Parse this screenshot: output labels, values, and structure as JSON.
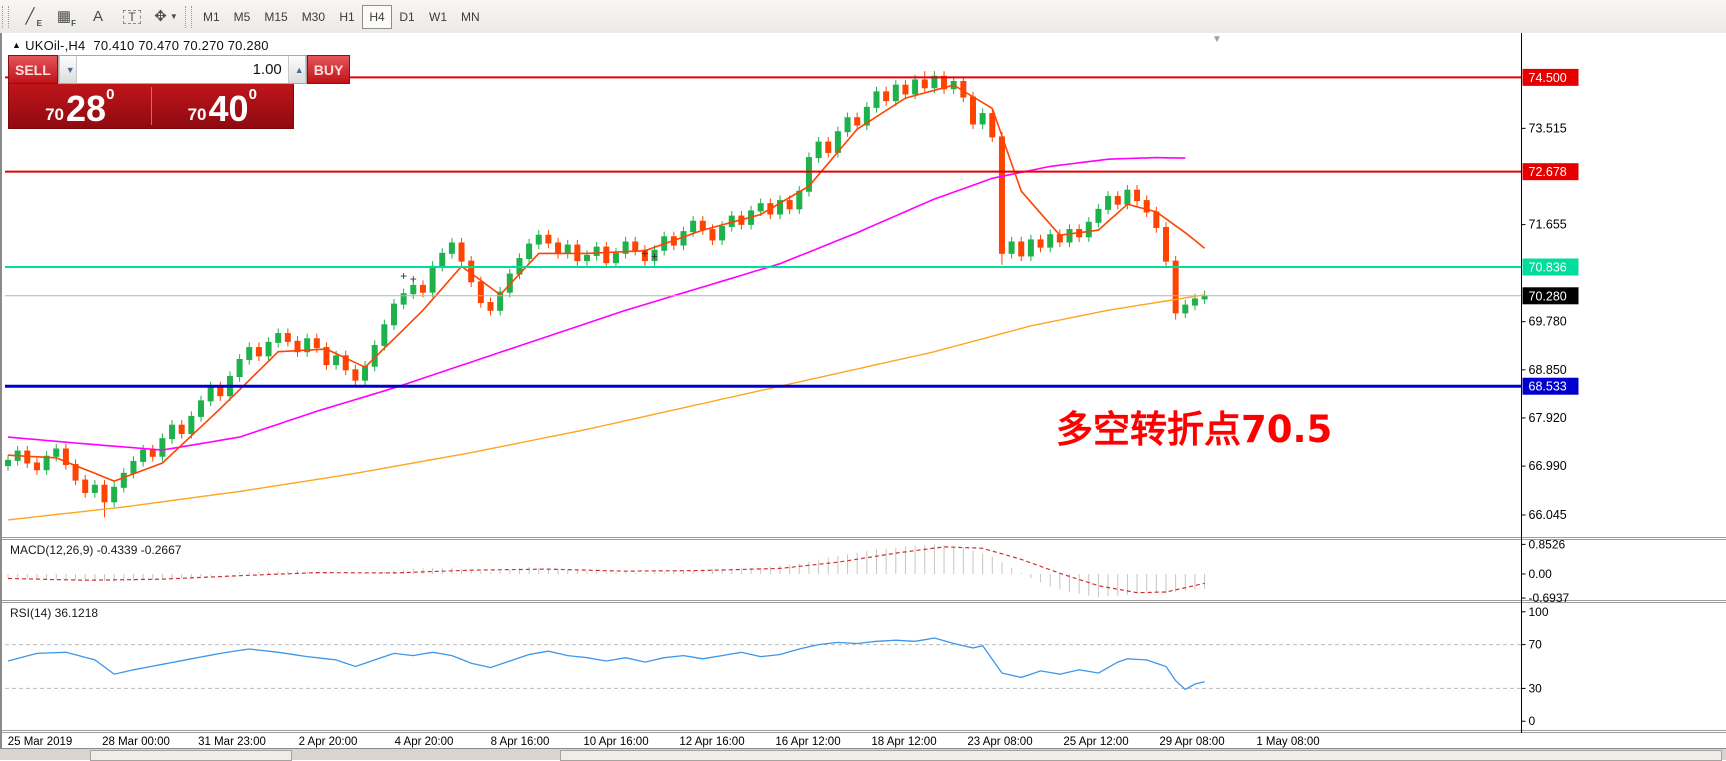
{
  "toolbar": {
    "tools": [
      {
        "id": "draw-lines-tool",
        "char": "╱",
        "sub": "E",
        "boxed": false,
        "dropdown": false
      },
      {
        "id": "grid-tool",
        "char": "▦",
        "sub": "F",
        "boxed": false,
        "dropdown": false
      },
      {
        "id": "text-tool",
        "char": "A",
        "sub": "",
        "boxed": false,
        "dropdown": false
      },
      {
        "id": "textbox-tool",
        "char": "T",
        "sub": "",
        "boxed": true,
        "dropdown": false
      },
      {
        "id": "objects-tool",
        "char": "✥",
        "sub": "",
        "boxed": false,
        "dropdown": true
      }
    ],
    "timeframes": [
      "M1",
      "M5",
      "M15",
      "M30",
      "H1",
      "H4",
      "D1",
      "W1",
      "MN"
    ],
    "active_timeframe": "H4"
  },
  "header": {
    "collapse_glyph": "▲",
    "symbol": "UKOil-,H4",
    "ohlc": "70.410 70.470 70.270 70.280"
  },
  "trade_panel": {
    "sell_label": "SELL",
    "buy_label": "BUY",
    "volume": "1.00",
    "down_glyph": "▼",
    "up_glyph": "▲",
    "sell_price_major": "70",
    "sell_price_pips": "28",
    "sell_price_frac": "0",
    "buy_price_major": "70",
    "buy_price_pips": "40",
    "buy_price_frac": "0"
  },
  "annotation": {
    "text": "多空转折点70.5",
    "color": "#FF0000"
  },
  "shift_marker_glyph": "▼",
  "macd_panel": {
    "label": "MACD(12,26,9) -0.4339 -0.2667",
    "ticks": [
      {
        "label": "0.8526",
        "value": 0.8526
      },
      {
        "label": "0.00",
        "value": 0
      },
      {
        "label": "-0.6937",
        "value": -0.6937
      }
    ]
  },
  "rsi_panel": {
    "label": "RSI(14) 36.1218",
    "ticks": [
      {
        "label": "100",
        "value": 100
      },
      {
        "label": "70",
        "value": 70
      },
      {
        "label": "30",
        "value": 30
      },
      {
        "label": "0",
        "value": 0
      }
    ],
    "dashed_levels": [
      70,
      30
    ]
  },
  "price_axis": {
    "ticks": [
      {
        "label": "73.515",
        "value": 73.515
      },
      {
        "label": "71.655",
        "value": 71.655
      },
      {
        "label": "69.780",
        "value": 69.78
      },
      {
        "label": "68.850",
        "value": 68.85
      },
      {
        "label": "67.920",
        "value": 67.92
      },
      {
        "label": "66.990",
        "value": 66.99
      },
      {
        "label": "66.045",
        "value": 66.045
      }
    ],
    "badges": [
      {
        "label": "74.500",
        "value": 74.5,
        "bg": "#E50000",
        "fg": "#ffffff"
      },
      {
        "label": "72.678",
        "value": 72.678,
        "bg": "#E50000",
        "fg": "#ffffff"
      },
      {
        "label": "70.836",
        "value": 70.836,
        "bg": "#00DD9C",
        "fg": "#ffffff"
      },
      {
        "label": "70.280",
        "value": 70.28,
        "bg": "#000000",
        "fg": "#ffffff"
      },
      {
        "label": "68.533",
        "value": 68.533,
        "bg": "#0000CC",
        "fg": "#ffffff"
      }
    ]
  },
  "x_axis": {
    "labels": [
      "25 Mar 2019",
      "28 Mar 00:00",
      "31 Mar 23:00",
      "2 Apr 20:00",
      "4 Apr 20:00",
      "8 Apr 16:00",
      "10 Apr 16:00",
      "12 Apr 16:00",
      "16 Apr 12:00",
      "18 Apr 12:00",
      "23 Apr 08:00",
      "25 Apr 12:00",
      "29 Apr 08:00",
      "1 May 08:00"
    ]
  },
  "chart_data": {
    "type": "candlestick",
    "symbol": "UKOil-",
    "timeframe": "H4",
    "title": "UKOil-,H4 70.410 70.470 70.270 70.280",
    "ylim": [
      65.62,
      75.28
    ],
    "closes": [
      67.1,
      67.28,
      67.05,
      66.92,
      67.18,
      67.32,
      67.02,
      66.72,
      66.48,
      66.62,
      66.3,
      66.58,
      66.85,
      67.08,
      67.3,
      67.18,
      67.52,
      67.78,
      67.62,
      67.95,
      68.25,
      68.52,
      68.35,
      68.72,
      69.05,
      69.28,
      69.12,
      69.38,
      69.55,
      69.4,
      69.2,
      69.45,
      69.28,
      68.95,
      69.12,
      68.85,
      68.65,
      68.92,
      69.32,
      69.72,
      70.12,
      70.32,
      70.48,
      70.35,
      70.85,
      71.1,
      71.3,
      70.95,
      70.55,
      70.15,
      70.0,
      70.35,
      70.7,
      71.0,
      71.28,
      71.45,
      71.3,
      71.1,
      71.26,
      70.96,
      71.06,
      71.22,
      70.92,
      71.1,
      71.32,
      71.16,
      70.96,
      71.16,
      71.42,
      71.26,
      71.52,
      71.72,
      71.56,
      71.36,
      71.62,
      71.82,
      71.66,
      71.92,
      72.06,
      71.86,
      72.12,
      71.96,
      72.3,
      72.95,
      73.25,
      73.05,
      73.45,
      73.72,
      73.58,
      73.92,
      74.22,
      74.05,
      74.35,
      74.18,
      74.45,
      74.3,
      74.52,
      74.28,
      74.42,
      74.12,
      73.6,
      73.8,
      73.35,
      71.1,
      71.32,
      71.05,
      71.36,
      71.22,
      71.46,
      71.32,
      71.56,
      71.42,
      71.7,
      71.95,
      72.2,
      72.05,
      72.32,
      72.12,
      71.9,
      71.6,
      70.95,
      69.95,
      70.1,
      70.22,
      70.28
    ],
    "first_open": 67.0,
    "default_wick": 0.1,
    "wick_overrides": {
      "10": {
        "low": 66.0
      },
      "95": {
        "high": 74.62
      },
      "103": {
        "low": 70.88
      },
      "121": {
        "low": 69.82
      }
    },
    "up_color": "#1FB14C",
    "down_color": "#FF4300",
    "current_price": 70.28,
    "hlines": [
      {
        "price": 74.5,
        "color": "#E50000",
        "width": 2
      },
      {
        "price": 72.678,
        "color": "#E50000",
        "width": 2
      },
      {
        "price": 70.836,
        "color": "#00DD9C",
        "width": 2
      },
      {
        "price": 70.28,
        "color": "#B4B4B4",
        "width": 1
      },
      {
        "price": 68.533,
        "color": "#0000CC",
        "width": 3
      }
    ],
    "moving_averages": [
      {
        "name": "slow-ma",
        "color": "#FFA520",
        "width": 1.4,
        "points": [
          [
            0,
            65.95
          ],
          [
            12,
            66.2
          ],
          [
            24,
            66.5
          ],
          [
            36,
            66.85
          ],
          [
            48,
            67.25
          ],
          [
            60,
            67.7
          ],
          [
            72,
            68.2
          ],
          [
            84,
            68.7
          ],
          [
            96,
            69.2
          ],
          [
            106,
            69.7
          ],
          [
            114,
            70.0
          ],
          [
            124,
            70.3
          ]
        ]
      },
      {
        "name": "mid-ma",
        "color": "#FF00FF",
        "width": 1.6,
        "points": [
          [
            0,
            67.55
          ],
          [
            8,
            67.42
          ],
          [
            16,
            67.3
          ],
          [
            24,
            67.55
          ],
          [
            32,
            68.05
          ],
          [
            40,
            68.5
          ],
          [
            48,
            69.0
          ],
          [
            56,
            69.5
          ],
          [
            64,
            70.0
          ],
          [
            72,
            70.45
          ],
          [
            80,
            70.9
          ],
          [
            88,
            71.5
          ],
          [
            96,
            72.15
          ],
          [
            102,
            72.55
          ],
          [
            108,
            72.78
          ],
          [
            114,
            72.92
          ],
          [
            119,
            72.95
          ],
          [
            122,
            72.94
          ]
        ]
      },
      {
        "name": "fast-ma",
        "color": "#FF4300",
        "width": 1.6,
        "points": [
          [
            0,
            67.2
          ],
          [
            5,
            67.15
          ],
          [
            11,
            66.7
          ],
          [
            16,
            67.05
          ],
          [
            22,
            68.1
          ],
          [
            28,
            69.2
          ],
          [
            33,
            69.25
          ],
          [
            37,
            68.9
          ],
          [
            43,
            70.0
          ],
          [
            47,
            70.85
          ],
          [
            51,
            70.3
          ],
          [
            55,
            71.1
          ],
          [
            60,
            71.1
          ],
          [
            66,
            71.15
          ],
          [
            72,
            71.55
          ],
          [
            78,
            71.85
          ],
          [
            83,
            72.4
          ],
          [
            88,
            73.5
          ],
          [
            93,
            74.1
          ],
          [
            98,
            74.35
          ],
          [
            102,
            73.9
          ],
          [
            105,
            72.3
          ],
          [
            109,
            71.45
          ],
          [
            113,
            71.55
          ],
          [
            116,
            72.05
          ],
          [
            119,
            71.9
          ],
          [
            122,
            71.5
          ],
          [
            124,
            71.2
          ]
        ]
      }
    ],
    "marks": [
      {
        "index": 41,
        "price": 70.66
      },
      {
        "index": 42,
        "price": 70.6
      },
      {
        "index": 66,
        "price": 71.1
      },
      {
        "index": 67,
        "price": 71.04
      }
    ],
    "macd": {
      "ylim": [
        -0.75,
        0.95
      ],
      "hist_color": "#C4C4C4",
      "signal_color": "#D03030",
      "hist_points": [
        [
          0,
          -0.1
        ],
        [
          6,
          -0.18
        ],
        [
          12,
          -0.22
        ],
        [
          18,
          -0.12
        ],
        [
          24,
          0.04
        ],
        [
          30,
          0.1
        ],
        [
          34,
          -0.02
        ],
        [
          38,
          0.04
        ],
        [
          42,
          0.16
        ],
        [
          46,
          0.18
        ],
        [
          50,
          0.04
        ],
        [
          54,
          0.2
        ],
        [
          58,
          0.12
        ],
        [
          62,
          0.05
        ],
        [
          66,
          0.03
        ],
        [
          70,
          0.1
        ],
        [
          74,
          0.15
        ],
        [
          78,
          0.18
        ],
        [
          82,
          0.3
        ],
        [
          86,
          0.52
        ],
        [
          90,
          0.7
        ],
        [
          94,
          0.82
        ],
        [
          96,
          0.85
        ],
        [
          99,
          0.76
        ],
        [
          102,
          0.5
        ],
        [
          104,
          0.18
        ],
        [
          106,
          -0.12
        ],
        [
          108,
          -0.36
        ],
        [
          110,
          -0.52
        ],
        [
          113,
          -0.67
        ],
        [
          116,
          -0.6
        ],
        [
          118,
          -0.5
        ],
        [
          120,
          -0.56
        ],
        [
          122,
          -0.48
        ],
        [
          124,
          -0.43
        ]
      ],
      "signal_points": [
        [
          0,
          -0.13
        ],
        [
          8,
          -0.18
        ],
        [
          16,
          -0.15
        ],
        [
          24,
          -0.05
        ],
        [
          32,
          0.04
        ],
        [
          40,
          0.03
        ],
        [
          48,
          0.11
        ],
        [
          56,
          0.14
        ],
        [
          64,
          0.08
        ],
        [
          72,
          0.1
        ],
        [
          80,
          0.16
        ],
        [
          86,
          0.34
        ],
        [
          92,
          0.6
        ],
        [
          97,
          0.78
        ],
        [
          101,
          0.74
        ],
        [
          105,
          0.42
        ],
        [
          109,
          0.02
        ],
        [
          113,
          -0.34
        ],
        [
          117,
          -0.54
        ],
        [
          120,
          -0.52
        ],
        [
          124,
          -0.27
        ]
      ]
    },
    "rsi": {
      "ylim": [
        -8,
        108
      ],
      "color": "#3D96E8",
      "points": [
        [
          0,
          55
        ],
        [
          3,
          62
        ],
        [
          6,
          63
        ],
        [
          9,
          56
        ],
        [
          11,
          43
        ],
        [
          13,
          47
        ],
        [
          16,
          52
        ],
        [
          19,
          57
        ],
        [
          22,
          62
        ],
        [
          25,
          66
        ],
        [
          28,
          63
        ],
        [
          31,
          59
        ],
        [
          34,
          56
        ],
        [
          36,
          50
        ],
        [
          38,
          56
        ],
        [
          40,
          62
        ],
        [
          42,
          60
        ],
        [
          44,
          63
        ],
        [
          46,
          60
        ],
        [
          48,
          53
        ],
        [
          50,
          49
        ],
        [
          52,
          55
        ],
        [
          54,
          61
        ],
        [
          56,
          64
        ],
        [
          58,
          60
        ],
        [
          60,
          58
        ],
        [
          62,
          55
        ],
        [
          64,
          58
        ],
        [
          66,
          54
        ],
        [
          68,
          58
        ],
        [
          70,
          60
        ],
        [
          72,
          57
        ],
        [
          74,
          60
        ],
        [
          76,
          63
        ],
        [
          78,
          59
        ],
        [
          80,
          61
        ],
        [
          82,
          66
        ],
        [
          84,
          70
        ],
        [
          86,
          72
        ],
        [
          88,
          71
        ],
        [
          90,
          73
        ],
        [
          92,
          74
        ],
        [
          94,
          73
        ],
        [
          96,
          76
        ],
        [
          98,
          71
        ],
        [
          100,
          67
        ],
        [
          101,
          69
        ],
        [
          103,
          44
        ],
        [
          105,
          40
        ],
        [
          107,
          46
        ],
        [
          109,
          43
        ],
        [
          111,
          47
        ],
        [
          113,
          44
        ],
        [
          115,
          54
        ],
        [
          116,
          57
        ],
        [
          118,
          56
        ],
        [
          120,
          50
        ],
        [
          121,
          37
        ],
        [
          122,
          29
        ],
        [
          123,
          34
        ],
        [
          124,
          36
        ]
      ]
    }
  }
}
